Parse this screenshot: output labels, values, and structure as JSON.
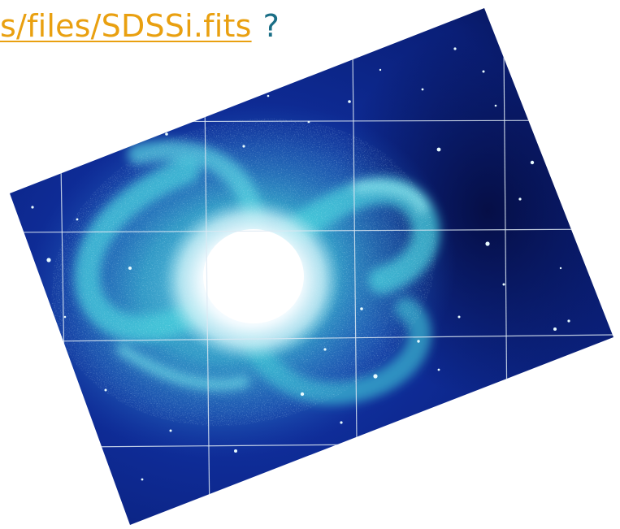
{
  "header": {
    "link_text": "s/files/SDSSi.fits",
    "suffix": "?"
  },
  "image": {
    "subject": "spiral-galaxy",
    "colors": {
      "background": "#ffffff",
      "link": "#e9a010",
      "question_mark": "#1a6e86",
      "field_edge": "#0b1d6e",
      "field_deep": "#050a3a",
      "arm_glow": "#3fc9d8",
      "core": "#ffffff",
      "grid": "#d8e4f0"
    }
  }
}
